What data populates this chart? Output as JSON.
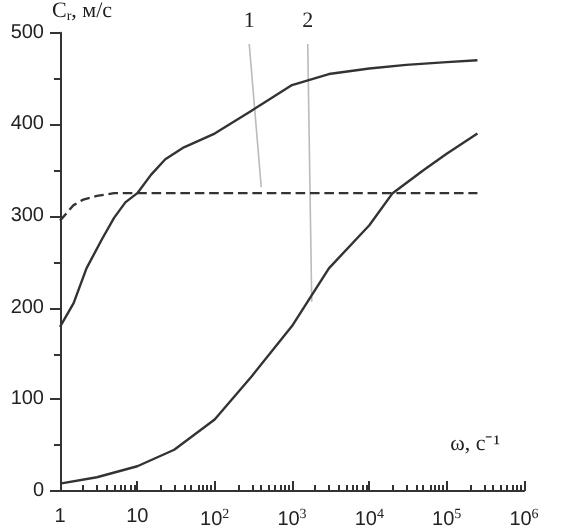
{
  "chart_data": {
    "type": "line",
    "xlabel": "ω, с⁻¹",
    "ylabel": "C$_{r}$, м/с",
    "log": "x",
    "grid": false,
    "marker": "none",
    "xlim": [
      1,
      1000000
    ],
    "ylim": [
      0,
      500
    ],
    "xticks": [
      1,
      10,
      {
        "value": 100,
        "label": "10$^{2}$"
      },
      {
        "value": 1000,
        "label": "10$^{3}$"
      },
      {
        "value": 10000,
        "label": "10$^{4}$"
      },
      {
        "value": 100000,
        "label": "10$^{5}$"
      },
      {
        "value": 1000000,
        "label": "10$^{6}$"
      }
    ],
    "yticks": [
      0,
      100,
      200,
      300,
      400,
      500
    ],
    "annotations": [
      {
        "text": "1",
        "x": 400,
        "y": 325
      },
      {
        "text": "2",
        "x": 1800,
        "y": 200
      }
    ],
    "series": [
      {
        "color": "#333333",
        "line_style": "solid",
        "x": [
          1,
          1.5,
          2.2,
          3.5,
          5,
          7,
          10,
          15,
          23,
          40,
          100,
          300,
          1000,
          3000,
          10000,
          30000,
          100000,
          250000
        ],
        "values": [
          179,
          205,
          243,
          275,
          298,
          315,
          325,
          345,
          362,
          375,
          390,
          415,
          443,
          455,
          461,
          465,
          468,
          470
        ]
      },
      {
        "color": "#333333",
        "line_style": "solid",
        "x": [
          1,
          3,
          10,
          30,
          100,
          300,
          1000,
          3000,
          10000,
          20000,
          50000,
          100000,
          250000
        ],
        "values": [
          8,
          15,
          27,
          45,
          78,
          125,
          180,
          243,
          290,
          325,
          350,
          368,
          390
        ]
      },
      {
        "color": "#333333",
        "line_style": "dashed",
        "x": [
          1,
          1.5,
          2,
          3,
          5,
          10,
          100,
          1000,
          10000,
          100000,
          250000
        ],
        "values": [
          295,
          312,
          318,
          322,
          325,
          325,
          325,
          325,
          325,
          325,
          325
        ]
      }
    ]
  }
}
